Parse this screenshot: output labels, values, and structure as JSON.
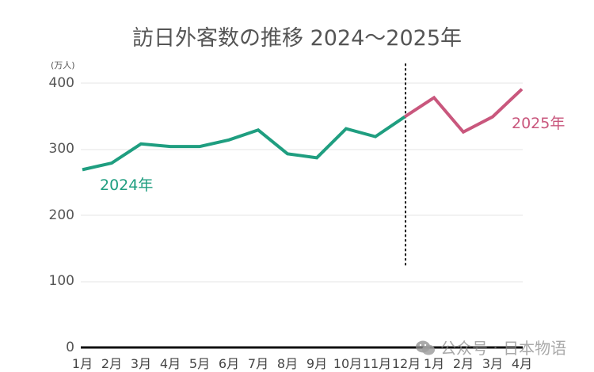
{
  "title": "訪日外客数の推移 2024～2025年",
  "unit_label": "(万人)",
  "y_ticks": [
    "400",
    "300",
    "200",
    "100",
    "0"
  ],
  "x_ticks": [
    "1月",
    "2月",
    "3月",
    "4月",
    "5月",
    "6月",
    "7月",
    "8月",
    "9月",
    "10月",
    "11月",
    "12月",
    "1月",
    "2月",
    "3月",
    "4月"
  ],
  "series_labels": {
    "s2024": "2024年",
    "s2025": "2025年"
  },
  "colors": {
    "s2024": "#1f9e80",
    "s2025": "#c9577d",
    "grid": "#e6e6e6",
    "axis": "#111111"
  },
  "watermark": {
    "text": "公众号 · 日本物语",
    "icon": "wechat-icon"
  },
  "chart_data": {
    "type": "line",
    "title": "訪日外客数の推移 2024～2025年",
    "xlabel": "",
    "ylabel": "(万人)",
    "ylim": [
      0,
      400
    ],
    "grid": true,
    "categories": [
      "1月",
      "2月",
      "3月",
      "4月",
      "5月",
      "6月",
      "7月",
      "8月",
      "9月",
      "10月",
      "11月",
      "12月",
      "1月",
      "2月",
      "3月",
      "4月"
    ],
    "series": [
      {
        "name": "2024年",
        "color": "#1f9e80",
        "x": [
          "1月",
          "2月",
          "3月",
          "4月",
          "5月",
          "6月",
          "7月",
          "8月",
          "9月",
          "10月",
          "11月",
          "12月"
        ],
        "values": [
          269,
          279,
          308,
          304,
          304,
          314,
          329,
          293,
          287,
          331,
          319,
          349
        ]
      },
      {
        "name": "2025年",
        "color": "#c9577d",
        "x": [
          "12月",
          "1月",
          "2月",
          "3月",
          "4月"
        ],
        "values": [
          349,
          378,
          326,
          349,
          391
        ]
      }
    ],
    "annotations": [
      {
        "type": "vertical-dotted-line",
        "at": "12月"
      }
    ]
  }
}
